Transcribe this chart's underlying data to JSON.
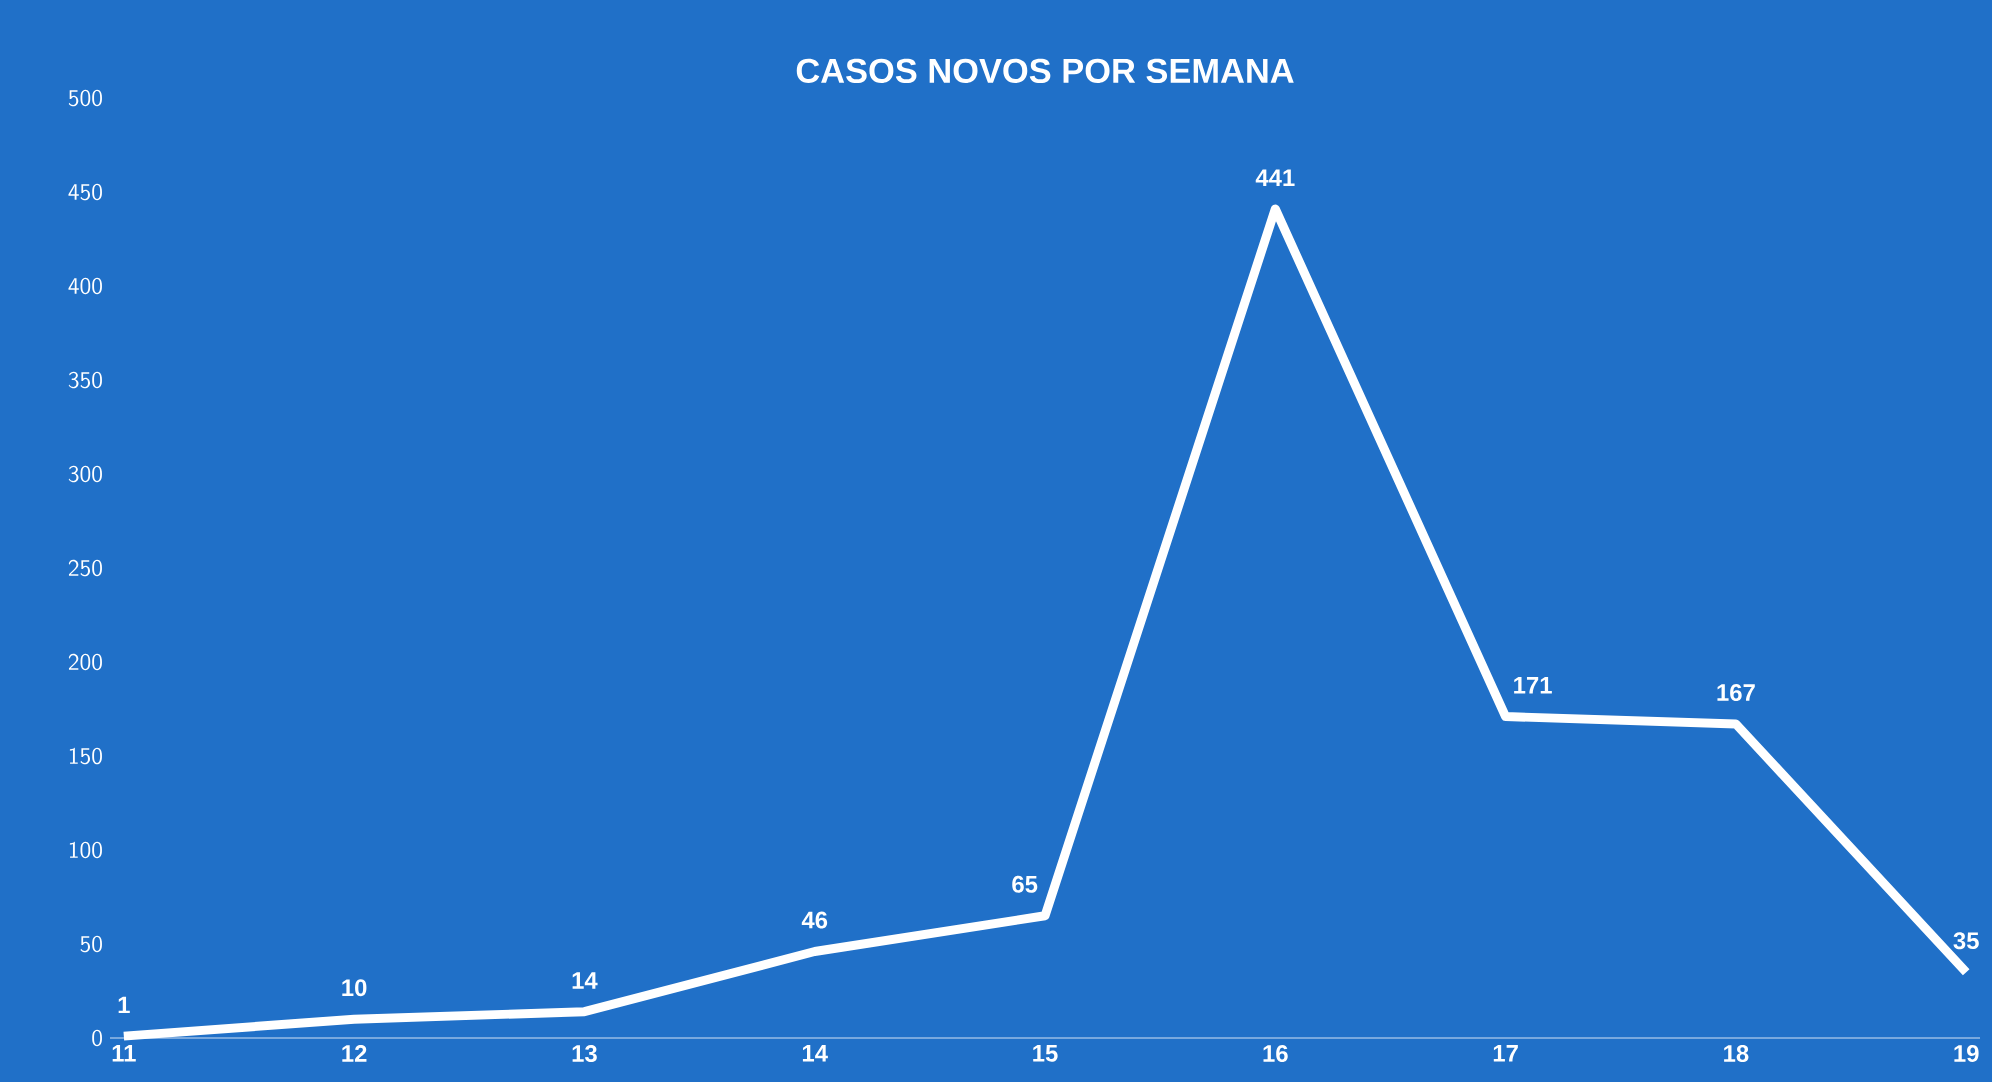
{
  "chart_data": {
    "type": "line",
    "title": "CASOS NOVOS POR SEMANA",
    "categories": [
      "11",
      "12",
      "13",
      "14",
      "15",
      "16",
      "17",
      "18",
      "19"
    ],
    "series": [
      {
        "color": "#ffffff",
        "values": [
          1,
          10,
          14,
          46,
          65,
          441,
          171,
          167,
          35
        ]
      }
    ],
    "ylim": [
      0,
      500
    ],
    "yticks": [
      0,
      50,
      100,
      150,
      200,
      250,
      300,
      350,
      400,
      450,
      500
    ],
    "data_labels": true,
    "grid": false,
    "marker": "none",
    "line_style": "solid"
  }
}
